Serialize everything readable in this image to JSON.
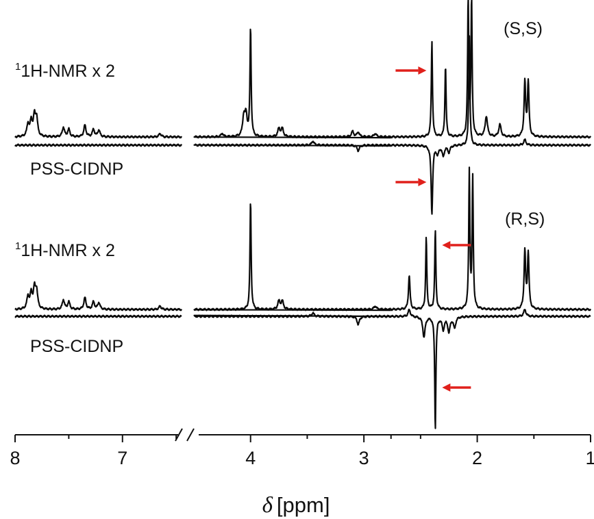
{
  "chart_data": {
    "type": "line",
    "xlabel_symbol": "δ",
    "xlabel_unit": "[ppm]",
    "x_ticks": [
      "8",
      "7",
      "4",
      "3",
      "2",
      "1"
    ],
    "axis_break": true,
    "xlim_segments": [
      [
        8.0,
        6.45
      ],
      [
        4.5,
        1.0
      ]
    ],
    "reversed_x": true,
    "colors": {
      "trace": "#0a0a0a",
      "arrow": "#e0201b"
    },
    "traces": [
      {
        "label": "1H-NMR x 2",
        "panel": "(S,S)",
        "baseline_y": 0,
        "peaks": [
          {
            "x": 7.88,
            "y": 18
          },
          {
            "x": 7.85,
            "y": 22
          },
          {
            "x": 7.82,
            "y": 28
          },
          {
            "x": 7.8,
            "y": 26
          },
          {
            "x": 7.55,
            "y": 14
          },
          {
            "x": 7.5,
            "y": 11
          },
          {
            "x": 7.35,
            "y": 17
          },
          {
            "x": 7.27,
            "y": 11
          },
          {
            "x": 7.22,
            "y": 10
          },
          {
            "x": 6.65,
            "y": 5
          },
          {
            "x": 4.25,
            "y": 5
          },
          {
            "x": 4.06,
            "y": 28
          },
          {
            "x": 4.04,
            "y": 30
          },
          {
            "x": 4.0,
            "y": 160
          },
          {
            "x": 3.75,
            "y": 12
          },
          {
            "x": 3.72,
            "y": 12
          },
          {
            "x": 3.1,
            "y": 8
          },
          {
            "x": 3.05,
            "y": 7
          },
          {
            "x": 2.9,
            "y": 5
          },
          {
            "x": 2.4,
            "y": 140
          },
          {
            "x": 2.28,
            "y": 105
          },
          {
            "x": 2.08,
            "y": 200
          },
          {
            "x": 2.05,
            "y": 200
          },
          {
            "x": 1.92,
            "y": 30
          },
          {
            "x": 1.8,
            "y": 18
          },
          {
            "x": 1.58,
            "y": 80
          },
          {
            "x": 1.55,
            "y": 80
          }
        ]
      },
      {
        "label": "PSS-CIDNP",
        "panel": "(S,S)",
        "baseline_y": 0,
        "peaks": [
          {
            "x": 3.45,
            "y": 6
          },
          {
            "x": 3.05,
            "y": -8
          },
          {
            "x": 2.4,
            "y": -100
          },
          {
            "x": 2.35,
            "y": -12
          },
          {
            "x": 2.3,
            "y": -15
          },
          {
            "x": 2.25,
            "y": -10
          },
          {
            "x": 2.07,
            "y": 160
          },
          {
            "x": 1.58,
            "y": 8
          }
        ]
      },
      {
        "label": "1H-NMR x 2",
        "panel": "(R,S)",
        "baseline_y": 0,
        "peaks": [
          {
            "x": 7.88,
            "y": 18
          },
          {
            "x": 7.85,
            "y": 22
          },
          {
            "x": 7.82,
            "y": 28
          },
          {
            "x": 7.8,
            "y": 26
          },
          {
            "x": 7.55,
            "y": 14
          },
          {
            "x": 7.5,
            "y": 11
          },
          {
            "x": 7.35,
            "y": 17
          },
          {
            "x": 7.27,
            "y": 11
          },
          {
            "x": 7.22,
            "y": 10
          },
          {
            "x": 6.65,
            "y": 5
          },
          {
            "x": 4.0,
            "y": 160
          },
          {
            "x": 3.75,
            "y": 12
          },
          {
            "x": 3.72,
            "y": 12
          },
          {
            "x": 2.9,
            "y": 5
          },
          {
            "x": 2.6,
            "y": 50
          },
          {
            "x": 2.45,
            "y": 105
          },
          {
            "x": 2.37,
            "y": 115
          },
          {
            "x": 2.07,
            "y": 200
          },
          {
            "x": 2.04,
            "y": 190
          },
          {
            "x": 1.58,
            "y": 85
          },
          {
            "x": 1.55,
            "y": 82
          }
        ]
      },
      {
        "label": "PSS-CIDNP",
        "panel": "(R,S)",
        "baseline_y": 0,
        "peaks": [
          {
            "x": 3.45,
            "y": 5
          },
          {
            "x": 3.05,
            "y": -12
          },
          {
            "x": 2.6,
            "y": 10
          },
          {
            "x": 2.47,
            "y": -30
          },
          {
            "x": 2.37,
            "y": -165
          },
          {
            "x": 2.3,
            "y": -18
          },
          {
            "x": 2.25,
            "y": -22
          },
          {
            "x": 2.2,
            "y": -16
          },
          {
            "x": 1.58,
            "y": 10
          }
        ]
      }
    ],
    "panel_labels": [
      "(S,S)",
      "(R,S)"
    ],
    "arrows": [
      {
        "x": 2.4,
        "trace": 0,
        "direction": "right"
      },
      {
        "x": 2.4,
        "trace": 1,
        "direction": "right"
      },
      {
        "x": 2.37,
        "trace": 2,
        "direction": "left"
      },
      {
        "x": 2.37,
        "trace": 3,
        "direction": "left"
      }
    ]
  }
}
